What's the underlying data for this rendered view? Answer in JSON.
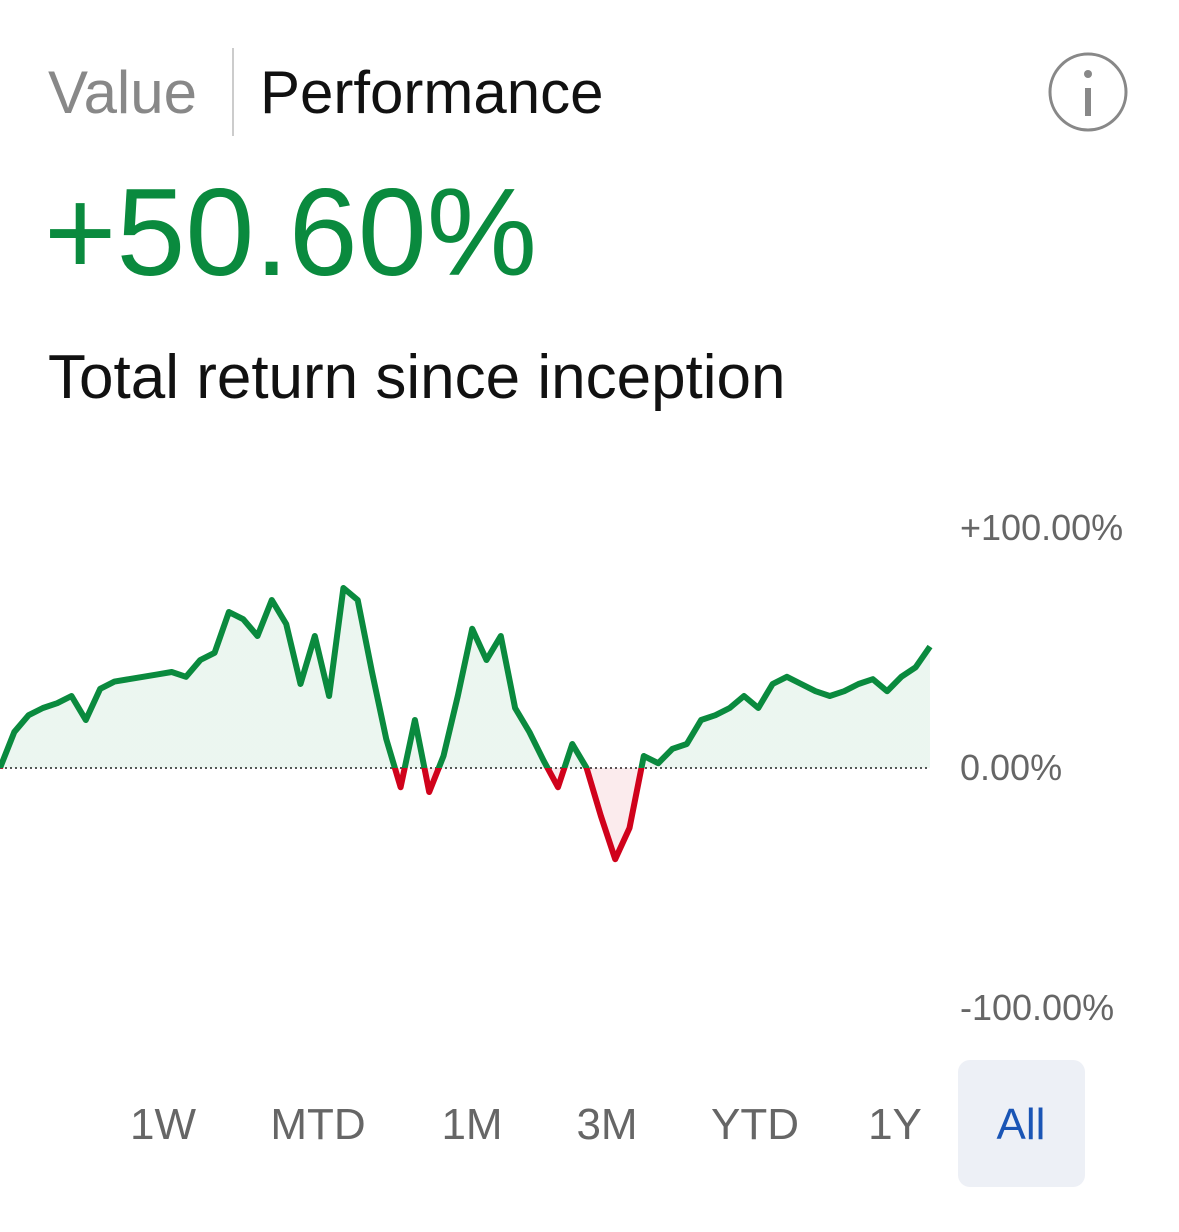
{
  "tabs": [
    "Value",
    "Performance"
  ],
  "headline": "+50.60%",
  "subtitle": "Total return since inception",
  "ranges": [
    "1W",
    "MTD",
    "1M",
    "3M",
    "YTD",
    "1Y",
    "All"
  ],
  "chart_data": {
    "type": "line",
    "series": [
      {
        "color": "#0a8a3e",
        "negative_color": "#d0021b",
        "values": [
          0,
          15,
          22,
          25,
          27,
          30,
          20,
          33,
          36,
          37,
          38,
          39,
          40,
          38,
          45,
          48,
          65,
          62,
          55,
          70,
          60,
          35,
          55,
          30,
          75,
          70,
          40,
          12,
          -8,
          20,
          -10,
          5,
          30,
          58,
          45,
          55,
          25,
          15,
          3,
          -8,
          10,
          0,
          -20,
          -38,
          -25,
          5,
          2,
          8,
          10,
          20,
          22,
          25,
          30,
          25,
          35,
          38,
          35,
          32,
          30,
          32,
          35,
          37,
          32,
          38,
          42,
          50.6
        ]
      }
    ],
    "ylim": [
      -100,
      100
    ],
    "yticks": [
      {
        "value": 100,
        "label": "+100.00%"
      },
      {
        "value": 0,
        "label": "0.00%"
      },
      {
        "value": -100,
        "label": "-100.00%"
      }
    ]
  }
}
